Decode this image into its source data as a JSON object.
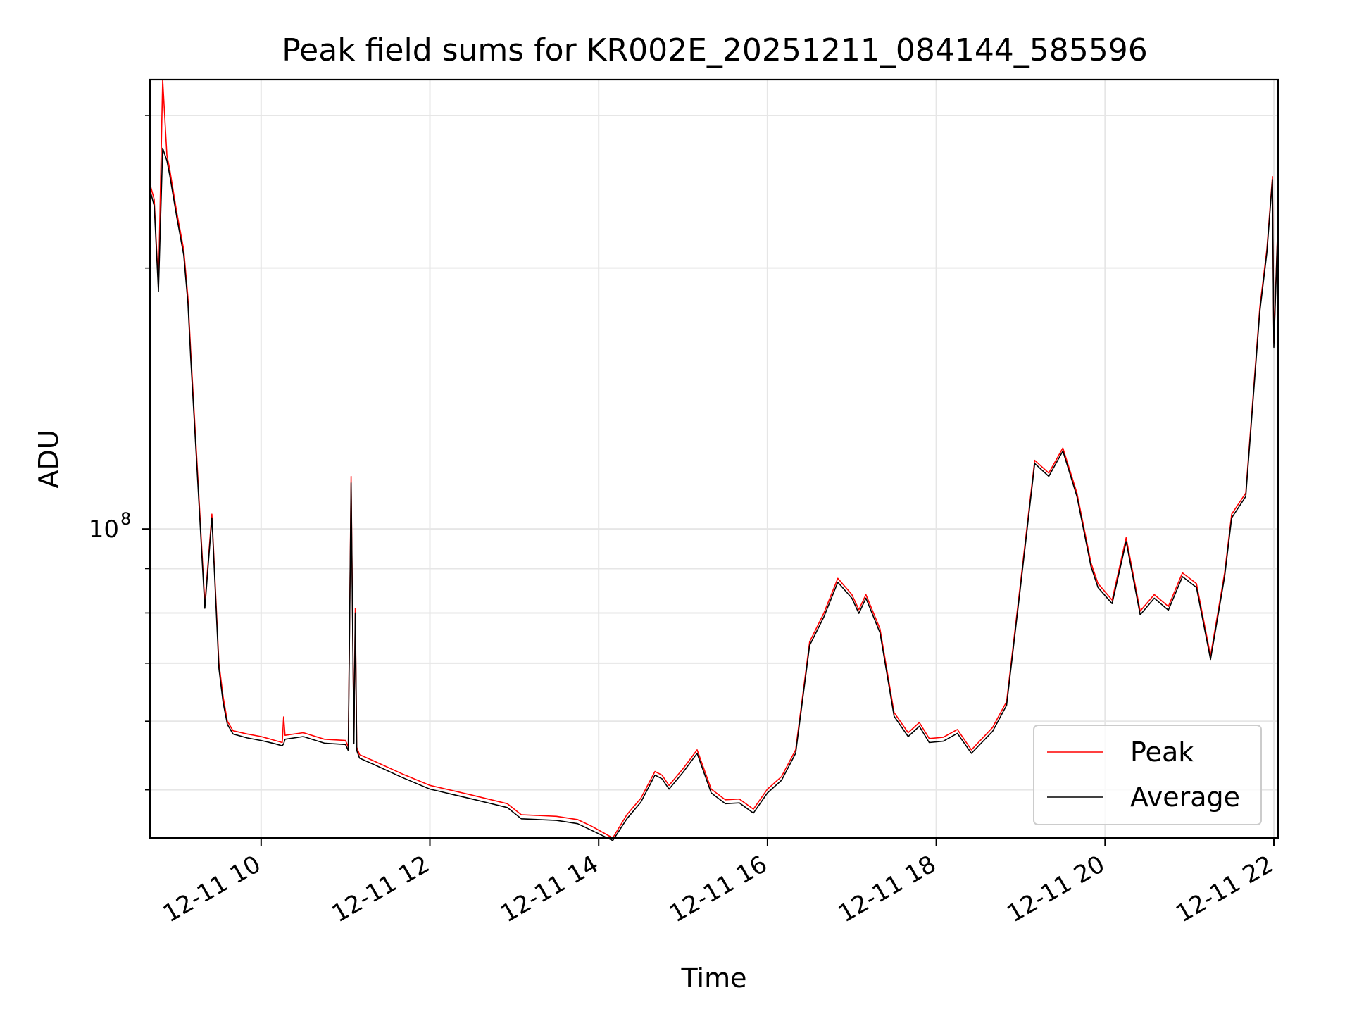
{
  "chart_data": {
    "type": "line",
    "title": "Peak field sums for KR002E_20251211_084144_585596",
    "xlabel": "Time",
    "ylabel": "ADU",
    "x_scale": "time",
    "y_scale": "log",
    "xlim": [
      "2025-12-11 08:41",
      "2025-12-11 22:03"
    ],
    "ylim": [
      44000000,
      330000000
    ],
    "xticks": [
      {
        "value": "2025-12-11 10:00",
        "label": "12-11 10"
      },
      {
        "value": "2025-12-11 12:00",
        "label": "12-11 12"
      },
      {
        "value": "2025-12-11 14:00",
        "label": "12-11 14"
      },
      {
        "value": "2025-12-11 16:00",
        "label": "12-11 16"
      },
      {
        "value": "2025-12-11 18:00",
        "label": "12-11 18"
      },
      {
        "value": "2025-12-11 20:00",
        "label": "12-11 20"
      },
      {
        "value": "2025-12-11 22:00",
        "label": "12-11 22"
      }
    ],
    "yticks_major": [
      {
        "value": 100000000,
        "base": "10",
        "exponent": "8"
      }
    ],
    "yticks_minor": [
      50000000,
      60000000,
      70000000,
      80000000,
      90000000,
      200000000,
      300000000
    ],
    "grid": true,
    "legend_position": "lower-right",
    "colors": {
      "Peak": "#ff0000",
      "Average": "#000000"
    },
    "x": [
      "2025-12-11 08:41",
      "2025-12-11 08:44",
      "2025-12-11 08:47",
      "2025-12-11 08:50",
      "2025-12-11 08:53",
      "2025-12-11 08:55",
      "2025-12-11 09:00",
      "2025-12-11 09:05",
      "2025-12-11 09:08",
      "2025-12-11 09:10",
      "2025-12-11 09:15",
      "2025-12-11 09:20",
      "2025-12-11 09:25",
      "2025-12-11 09:30",
      "2025-12-11 09:33",
      "2025-12-11 09:36",
      "2025-12-11 09:40",
      "2025-12-11 09:50",
      "2025-12-11 10:00",
      "2025-12-11 10:10",
      "2025-12-11 10:15",
      "2025-12-11 10:16",
      "2025-12-11 10:17",
      "2025-12-11 10:30",
      "2025-12-11 10:45",
      "2025-12-11 11:00",
      "2025-12-11 11:02",
      "2025-12-11 11:04",
      "2025-12-11 11:06",
      "2025-12-11 11:07",
      "2025-12-11 11:08",
      "2025-12-11 11:10",
      "2025-12-11 11:20",
      "2025-12-11 11:40",
      "2025-12-11 12:00",
      "2025-12-11 12:30",
      "2025-12-11 12:55",
      "2025-12-11 13:05",
      "2025-12-11 13:30",
      "2025-12-11 13:45",
      "2025-12-11 13:55",
      "2025-12-11 14:10",
      "2025-12-11 14:20",
      "2025-12-11 14:30",
      "2025-12-11 14:40",
      "2025-12-11 14:45",
      "2025-12-11 14:50",
      "2025-12-11 15:00",
      "2025-12-11 15:10",
      "2025-12-11 15:20",
      "2025-12-11 15:30",
      "2025-12-11 15:40",
      "2025-12-11 15:50",
      "2025-12-11 16:00",
      "2025-12-11 16:10",
      "2025-12-11 16:20",
      "2025-12-11 16:30",
      "2025-12-11 16:40",
      "2025-12-11 16:50",
      "2025-12-11 17:00",
      "2025-12-11 17:05",
      "2025-12-11 17:10",
      "2025-12-11 17:20",
      "2025-12-11 17:30",
      "2025-12-11 17:40",
      "2025-12-11 17:48",
      "2025-12-11 17:55",
      "2025-12-11 18:05",
      "2025-12-11 18:15",
      "2025-12-11 18:25",
      "2025-12-11 18:40",
      "2025-12-11 18:50",
      "2025-12-11 19:00",
      "2025-12-11 19:10",
      "2025-12-11 19:20",
      "2025-12-11 19:30",
      "2025-12-11 19:40",
      "2025-12-11 19:50",
      "2025-12-11 19:55",
      "2025-12-11 20:05",
      "2025-12-11 20:15",
      "2025-12-11 20:25",
      "2025-12-11 20:35",
      "2025-12-11 20:45",
      "2025-12-11 20:55",
      "2025-12-11 21:05",
      "2025-12-11 21:15",
      "2025-12-11 21:25",
      "2025-12-11 21:30",
      "2025-12-11 21:40",
      "2025-12-11 21:50",
      "2025-12-11 21:55",
      "2025-12-11 21:59",
      "2025-12-11 22:00",
      "2025-12-11 22:03"
    ],
    "series": [
      {
        "name": "Peak",
        "values": [
          250000000,
          240000000,
          190000000,
          330000000,
          270000000,
          260000000,
          232000000,
          210000000,
          185000000,
          160000000,
          115000000,
          82000000,
          104000000,
          70000000,
          64000000,
          60000000,
          58500000,
          58000000,
          57600000,
          57000000,
          56700000,
          60700000,
          57800000,
          58200000,
          57200000,
          57000000,
          56000000,
          115000000,
          57000000,
          81000000,
          56000000,
          54900000,
          54000000,
          52200000,
          50600000,
          49300000,
          48200000,
          46800000,
          46600000,
          46200000,
          45400000,
          44000000,
          46800000,
          48900000,
          52500000,
          52000000,
          50600000,
          52900000,
          55600000,
          50100000,
          48700000,
          48800000,
          47500000,
          50100000,
          51800000,
          55600000,
          74100000,
          79900000,
          87700000,
          84000000,
          80700000,
          84000000,
          76700000,
          61400000,
          58200000,
          59800000,
          57300000,
          57500000,
          58700000,
          55600000,
          59000000,
          63200000,
          87000000,
          120000000,
          116000000,
          124000000,
          110000000,
          91400000,
          86500000,
          82800000,
          97700000,
          80400000,
          84000000,
          81400000,
          89000000,
          86500000,
          71400000,
          89000000,
          104000000,
          110000000,
          180000000,
          210000000,
          255000000,
          164000000,
          230000000
        ]
      },
      {
        "name": "Average",
        "values": [
          246000000,
          236000000,
          188000000,
          275000000,
          266000000,
          256000000,
          229000000,
          207000000,
          182000000,
          157000000,
          113000000,
          81000000,
          103000000,
          69000000,
          63000000,
          59500000,
          58000000,
          57400000,
          57000000,
          56500000,
          56200000,
          56500000,
          57200000,
          57600000,
          56600000,
          56400000,
          55500000,
          113000000,
          56500000,
          80000000,
          55500000,
          54400000,
          53500000,
          51700000,
          50100000,
          48800000,
          47700000,
          46300000,
          46100000,
          45700000,
          44900000,
          43700000,
          46300000,
          48400000,
          52000000,
          51500000,
          50100000,
          52400000,
          55100000,
          49600000,
          48200000,
          48300000,
          47000000,
          49600000,
          51300000,
          55100000,
          73400000,
          79100000,
          86800000,
          83200000,
          79900000,
          83200000,
          75900000,
          60800000,
          57600000,
          59200000,
          56700000,
          56900000,
          58100000,
          55100000,
          58400000,
          62600000,
          86100000,
          119000000,
          115000000,
          123000000,
          109000000,
          90500000,
          85600000,
          82000000,
          96700000,
          79600000,
          83200000,
          80600000,
          88100000,
          85600000,
          70700000,
          88100000,
          103000000,
          109000000,
          178000000,
          208000000,
          253000000,
          162000000,
          228000000
        ]
      }
    ]
  }
}
